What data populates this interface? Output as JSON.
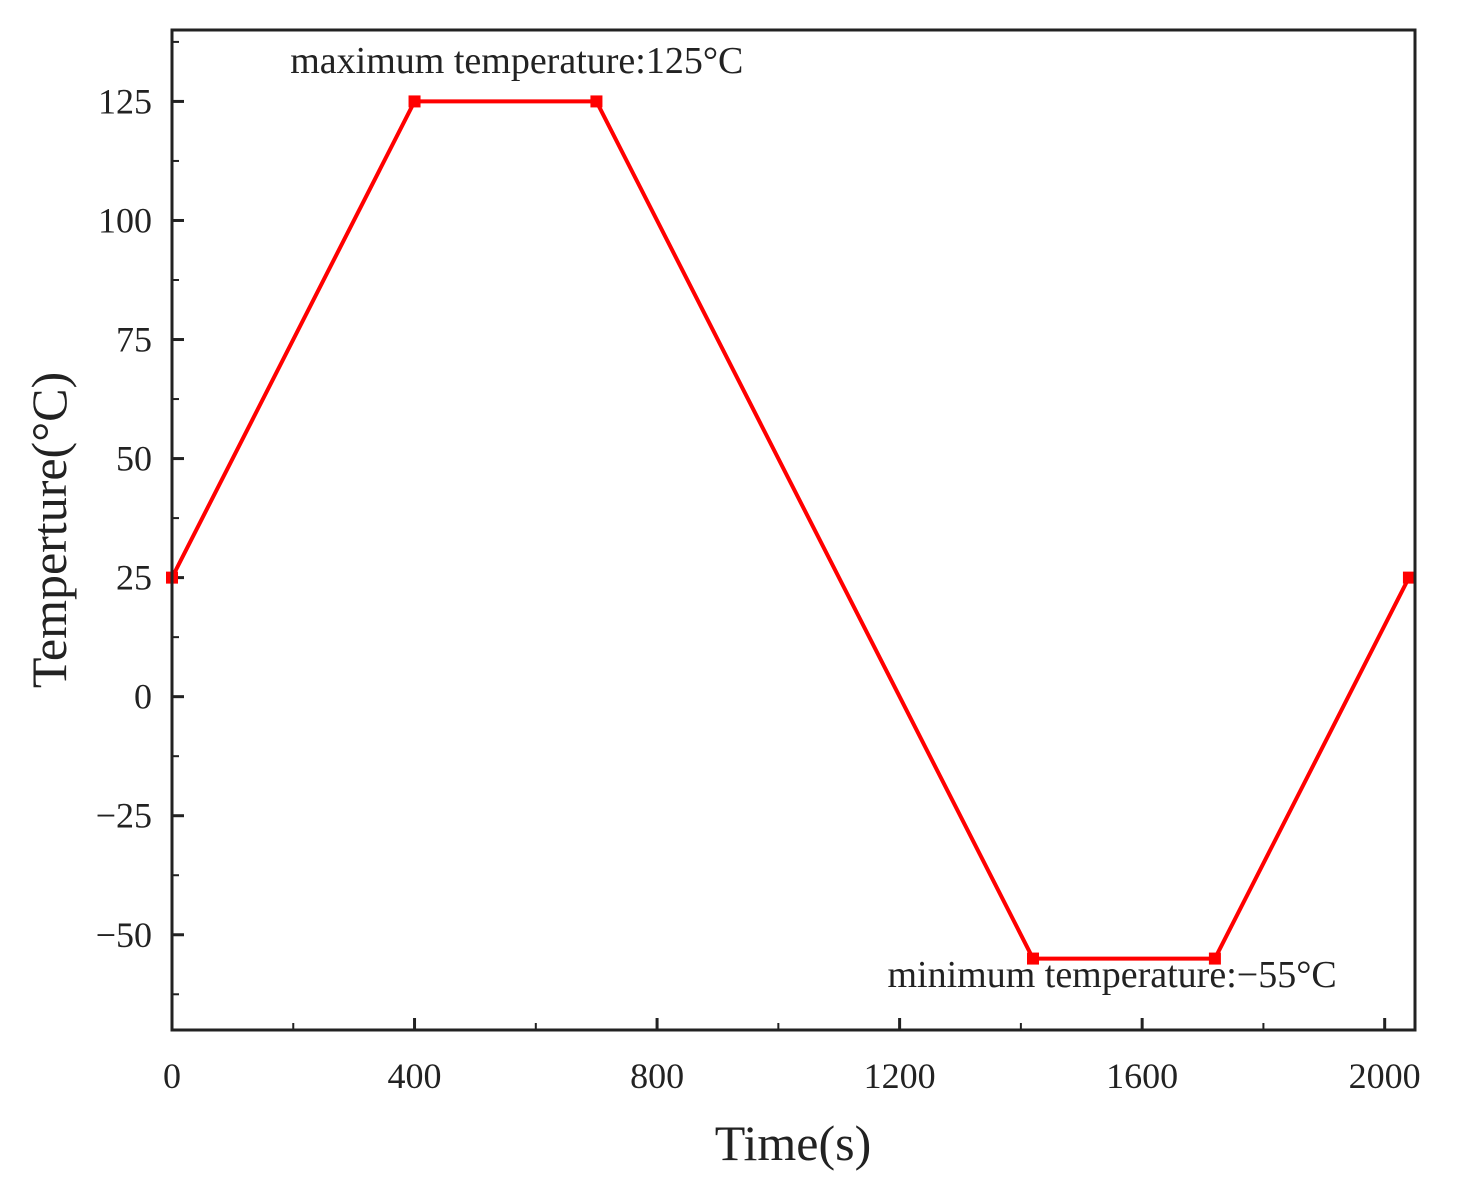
{
  "chart_data": {
    "type": "line",
    "title": "",
    "xlabel": "Time(s)",
    "ylabel": "Temperture(°C)",
    "xlim": [
      0,
      2050
    ],
    "ylim": [
      -70,
      140
    ],
    "x_ticks": [
      0,
      400,
      800,
      1200,
      1600,
      2000
    ],
    "x_tick_labels": [
      "0",
      "400",
      "800",
      "1200",
      "1600",
      "2000"
    ],
    "y_ticks": [
      -50,
      -25,
      0,
      25,
      50,
      75,
      100,
      125
    ],
    "y_tick_labels": [
      "−50",
      "−25",
      "0",
      "25",
      "50",
      "75",
      "100",
      "125"
    ],
    "grid": false,
    "series": [
      {
        "name": "Temperature",
        "color": "#ff0000",
        "x": [
          0,
          400,
          700,
          1420,
          1720,
          2040
        ],
        "y": [
          25,
          125,
          125,
          -55,
          -55,
          25
        ]
      }
    ],
    "annotations": [
      {
        "text": "maximum temperature:125°C",
        "x": 195,
        "y": 131,
        "anchor": "start"
      },
      {
        "text": "minimum temperature:−55°C",
        "x": 1180,
        "y": -61,
        "anchor": "start"
      }
    ]
  }
}
